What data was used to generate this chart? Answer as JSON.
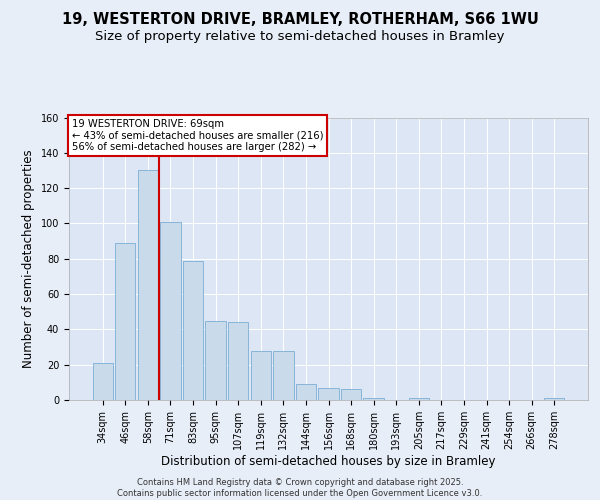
{
  "title1": "19, WESTERTON DRIVE, BRAMLEY, ROTHERHAM, S66 1WU",
  "title2": "Size of property relative to semi-detached houses in Bramley",
  "xlabel": "Distribution of semi-detached houses by size in Bramley",
  "ylabel": "Number of semi-detached properties",
  "categories": [
    "34sqm",
    "46sqm",
    "58sqm",
    "71sqm",
    "83sqm",
    "95sqm",
    "107sqm",
    "119sqm",
    "132sqm",
    "144sqm",
    "156sqm",
    "168sqm",
    "180sqm",
    "193sqm",
    "205sqm",
    "217sqm",
    "229sqm",
    "241sqm",
    "254sqm",
    "266sqm",
    "278sqm"
  ],
  "values": [
    21,
    89,
    130,
    101,
    79,
    45,
    44,
    28,
    28,
    9,
    7,
    6,
    1,
    0,
    1,
    0,
    0,
    0,
    0,
    0,
    1
  ],
  "bar_color": "#c9daea",
  "bar_edge_color": "#7bafd4",
  "highlight_line_color": "#cc0000",
  "annotation_text": "19 WESTERTON DRIVE: 69sqm\n← 43% of semi-detached houses are smaller (216)\n56% of semi-detached houses are larger (282) →",
  "annotation_box_color": "#ffffff",
  "annotation_box_edge": "#cc0000",
  "ylim": [
    0,
    160
  ],
  "yticks": [
    0,
    20,
    40,
    60,
    80,
    100,
    120,
    140,
    160
  ],
  "footer": "Contains HM Land Registry data © Crown copyright and database right 2025.\nContains public sector information licensed under the Open Government Licence v3.0.",
  "fig_bg_color": "#e8eef8",
  "plot_bg_color": "#dce6f5",
  "title_fontsize": 10.5,
  "subtitle_fontsize": 9.5,
  "tick_fontsize": 7,
  "label_fontsize": 8.5,
  "footer_fontsize": 6,
  "highlight_bar_index": 3,
  "red_line_x": 2.5
}
